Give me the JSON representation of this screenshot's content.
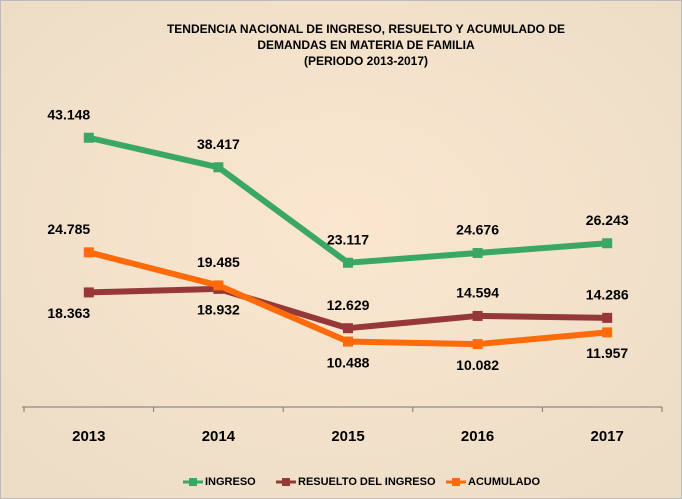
{
  "chart_data": {
    "type": "line",
    "title": [
      "TENDENCIA NACIONAL DE INGRESO, RESUELTO Y ACUMULADO DE",
      "DEMANDAS EN MATERIA DE FAMILIA",
      "(PERIODO 2013-2017)"
    ],
    "categories": [
      "2013",
      "2014",
      "2015",
      "2016",
      "2017"
    ],
    "ylim": [
      0,
      50000
    ],
    "legend": "bottom",
    "series": [
      {
        "name": "INGRESO",
        "color": "#3aa864",
        "values": [
          43148,
          38417,
          23117,
          24676,
          26243
        ],
        "value_labels": [
          "43.148",
          "38.417",
          "23.117",
          "24.676",
          "26.243"
        ]
      },
      {
        "name": "RESUELTO DEL INGRESO",
        "color": "#963838",
        "values": [
          18363,
          18932,
          12629,
          14594,
          14286
        ],
        "value_labels": [
          "18.363",
          "18.932",
          "12.629",
          "14.594",
          "14.286"
        ]
      },
      {
        "name": "ACUMULADO",
        "color": "#ff6a0a",
        "values": [
          24785,
          19485,
          10488,
          10082,
          11957
        ],
        "value_labels": [
          "24.785",
          "19.485",
          "10.488",
          "10.082",
          "11.957"
        ]
      }
    ]
  }
}
